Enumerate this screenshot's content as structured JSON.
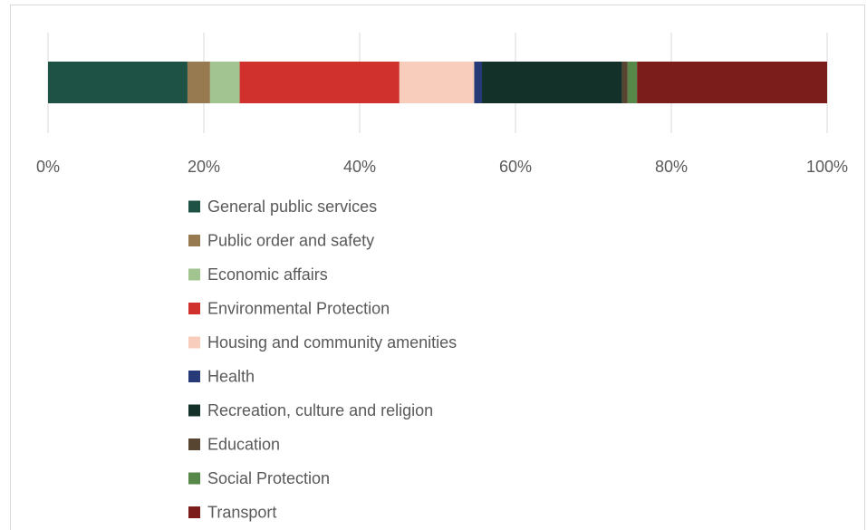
{
  "chart_data": {
    "type": "bar",
    "orientation": "horizontal",
    "stacked": "percent",
    "title": "",
    "xlabel": "",
    "ylabel": "",
    "xlim": [
      0,
      100
    ],
    "x_ticks": [
      "0%",
      "20%",
      "40%",
      "60%",
      "80%",
      "100%"
    ],
    "grid": true,
    "legend_position": "bottom",
    "series": [
      {
        "name": "General public services",
        "value": 17.9,
        "color": "#1e5245"
      },
      {
        "name": "Public order and safety",
        "value": 2.9,
        "color": "#977a50"
      },
      {
        "name": "Economic affairs",
        "value": 3.8,
        "color": "#a1c491"
      },
      {
        "name": "Environmental Protection",
        "value": 20.5,
        "color": "#d0312d"
      },
      {
        "name": "Housing and community amenities",
        "value": 9.6,
        "color": "#f8cdbc"
      },
      {
        "name": "Health",
        "value": 1.0,
        "color": "#263a78"
      },
      {
        "name": "Recreation, culture and religion",
        "value": 18.0,
        "color": "#133029"
      },
      {
        "name": "Education",
        "value": 0.7,
        "color": "#574532"
      },
      {
        "name": "Social Protection",
        "value": 1.2,
        "color": "#58874a"
      },
      {
        "name": "Transport",
        "value": 24.4,
        "color": "#7b1d1a"
      }
    ]
  }
}
